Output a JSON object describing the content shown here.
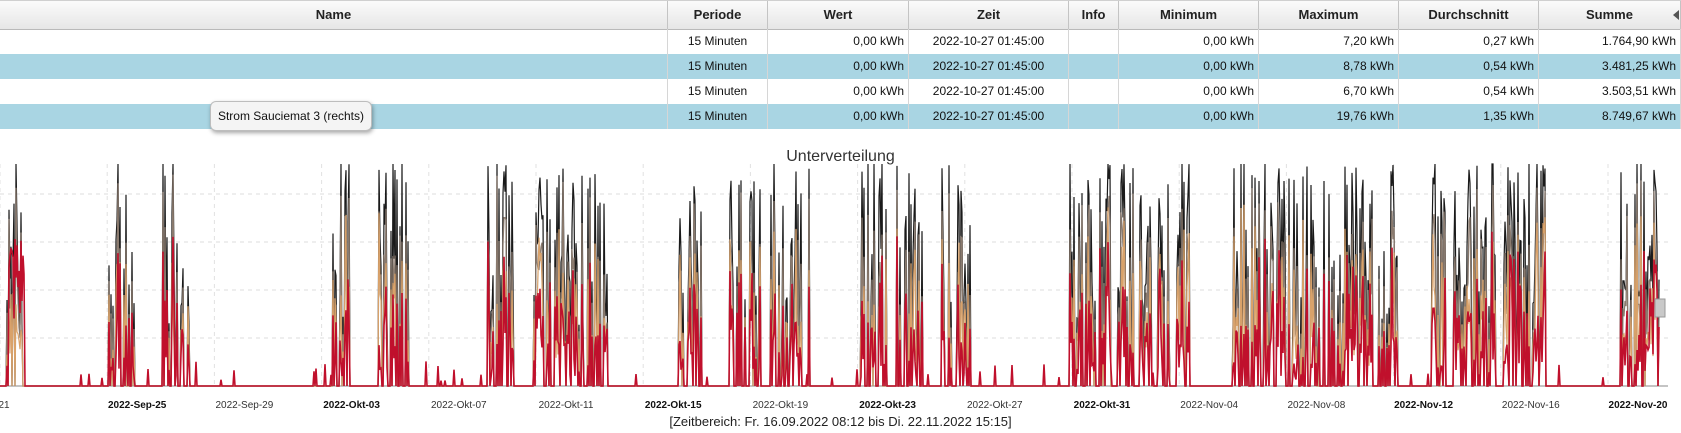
{
  "table": {
    "columns": [
      "Name",
      "Periode",
      "Wert",
      "Zeit",
      "Info",
      "Minimum",
      "Maximum",
      "Durchschnitt",
      "Summe"
    ],
    "rows": [
      {
        "name": "",
        "periode": "15 Minuten",
        "wert": "0,00 kWh",
        "zeit": "2022-10-27 01:45:00",
        "info": "",
        "minimum": "0,00 kWh",
        "maximum": "7,20 kWh",
        "durchschnitt": "0,27 kWh",
        "summe": "1.764,90 kWh"
      },
      {
        "name": "",
        "periode": "15 Minuten",
        "wert": "0,00 kWh",
        "zeit": "2022-10-27 01:45:00",
        "info": "",
        "minimum": "0,00 kWh",
        "maximum": "8,78 kWh",
        "durchschnitt": "0,54 kWh",
        "summe": "3.481,25 kWh"
      },
      {
        "name": "",
        "periode": "15 Minuten",
        "wert": "0,00 kWh",
        "zeit": "2022-10-27 01:45:00",
        "info": "",
        "minimum": "0,00 kWh",
        "maximum": "6,70 kWh",
        "durchschnitt": "0,54 kWh",
        "summe": "3.503,51 kWh"
      },
      {
        "name": "",
        "periode": "15 Minuten",
        "wert": "0,00 kWh",
        "zeit": "2022-10-27 01:45:00",
        "info": "",
        "minimum": "0,00 kWh",
        "maximum": "19,76 kWh",
        "durchschnitt": "1,35 kWh",
        "summe": "8.749,67 kWh"
      }
    ],
    "tooltip": "Strom Sauciemat 3 (rechts)"
  },
  "chart_data": {
    "type": "line",
    "title": "Unterverteilung",
    "range_label": "[Zeitbereich: Fr. 16.09.2022 08:12 bis Di. 22.11.2022 15:15]",
    "x_start": "2022-09-16",
    "x_end": "2022-11-22",
    "tick_labels": [
      "21",
      "2022-Sep-25",
      "2022-Sep-29",
      "2022-Okt-03",
      "2022-Okt-07",
      "2022-Okt-11",
      "2022-Okt-15",
      "2022-Okt-19",
      "2022-Okt-23",
      "2022-Okt-27",
      "2022-Okt-31",
      "2022-Nov-04",
      "2022-Nov-08",
      "2022-Nov-12",
      "2022-Nov-16",
      "2022-Nov-20"
    ],
    "major_ticks": [
      "2022-Sep-25",
      "2022-Okt-03",
      "2022-Okt-15",
      "2022-Okt-23",
      "2022-Okt-31",
      "2022-Nov-12",
      "2022-Nov-20"
    ],
    "grid": true,
    "series_colors": [
      "#1a1a1a",
      "#8a7a6e",
      "#d9a26a",
      "#c0102c"
    ]
  }
}
